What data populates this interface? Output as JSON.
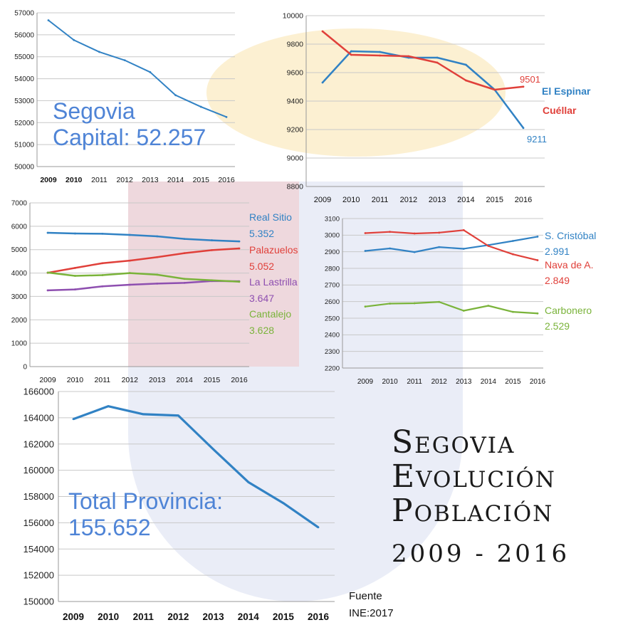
{
  "title": {
    "line1": "Segovia",
    "line2": "Evolución",
    "line3": "Población",
    "years": "2009 - 2016"
  },
  "source": {
    "label": "Fuente",
    "value": "INE:2017"
  },
  "colors": {
    "blue": "#3182c4",
    "red": "#e0403a",
    "green": "#7ab33a",
    "purple": "#8e4fb0",
    "label_blue": "#4f84d6",
    "grid": "#c8c8c8"
  },
  "labels": {
    "capital_line1": "Segovia",
    "capital_line2": "Capital: 52.257",
    "provincia_line1": "Total Provincia:",
    "provincia_line2": "155.652"
  },
  "chart_data": [
    {
      "id": "capital",
      "type": "line",
      "title": "Segovia Capital: 52.257",
      "x": [
        "2009",
        "2010",
        "2011",
        "2012",
        "2013",
        "2014",
        "2015",
        "2016"
      ],
      "ylim": [
        50000,
        57000
      ],
      "yticks": [
        50000,
        51000,
        52000,
        53000,
        54000,
        55000,
        56000,
        57000
      ],
      "series": [
        {
          "name": "Segovia Capital",
          "color": "#3182c4",
          "values": [
            56660,
            55760,
            55220,
            54840,
            54300,
            53250,
            52720,
            52257
          ]
        }
      ]
    },
    {
      "id": "espinar-cuellar",
      "type": "line",
      "x": [
        "2009",
        "2010",
        "2011",
        "2012",
        "2013",
        "2014",
        "2015",
        "2016"
      ],
      "ylim": [
        8800,
        10000
      ],
      "yticks": [
        8800,
        9000,
        9200,
        9400,
        9600,
        9800,
        10000
      ],
      "series": [
        {
          "name": "El Espinar",
          "color": "#3182c4",
          "values": [
            9530,
            9750,
            9745,
            9705,
            9705,
            9655,
            9480,
            9211
          ],
          "end_label": "9211"
        },
        {
          "name": "Cuéllar",
          "color": "#e0403a",
          "values": [
            9890,
            9725,
            9720,
            9715,
            9670,
            9545,
            9480,
            9501
          ],
          "end_label": "9501"
        }
      ]
    },
    {
      "id": "municipios-medianos",
      "type": "line",
      "x": [
        "2009",
        "2010",
        "2011",
        "2012",
        "2013",
        "2014",
        "2015",
        "2016"
      ],
      "ylim": [
        0,
        7000
      ],
      "yticks": [
        0,
        1000,
        2000,
        3000,
        4000,
        5000,
        6000,
        7000
      ],
      "series": [
        {
          "name": "Real Sitio",
          "color": "#3182c4",
          "values": [
            5720,
            5690,
            5680,
            5630,
            5570,
            5460,
            5400,
            5352
          ],
          "end_label": "5.352"
        },
        {
          "name": "Palazuelos",
          "color": "#e0403a",
          "values": [
            4010,
            4220,
            4420,
            4530,
            4680,
            4850,
            4980,
            5052
          ],
          "end_label": "5.052"
        },
        {
          "name": "La Lastrilla",
          "color": "#8e4fb0",
          "values": [
            3260,
            3300,
            3430,
            3500,
            3550,
            3580,
            3660,
            3647
          ],
          "end_label": "3.647"
        },
        {
          "name": "Cantalejo",
          "color": "#7ab33a",
          "values": [
            4020,
            3880,
            3910,
            4000,
            3930,
            3750,
            3690,
            3628
          ],
          "end_label": "3.628"
        }
      ]
    },
    {
      "id": "municipios-pequenos",
      "type": "line",
      "x": [
        "2009",
        "2010",
        "2011",
        "2012",
        "2013",
        "2014",
        "2015",
        "2016"
      ],
      "ylim": [
        2200,
        3100
      ],
      "yticks": [
        2200,
        2300,
        2400,
        2500,
        2600,
        2700,
        2800,
        2900,
        3000,
        3100
      ],
      "series": [
        {
          "name": "S. Cristóbal",
          "color": "#3182c4",
          "values": [
            2905,
            2920,
            2898,
            2928,
            2918,
            2940,
            2965,
            2991
          ],
          "end_label": "2.991"
        },
        {
          "name": "Nava de A.",
          "color": "#e0403a",
          "values": [
            3012,
            3020,
            3010,
            3015,
            3030,
            2935,
            2885,
            2849
          ],
          "end_label": "2.849"
        },
        {
          "name": "Carbonero",
          "color": "#7ab33a",
          "values": [
            2570,
            2588,
            2590,
            2598,
            2545,
            2575,
            2538,
            2529
          ],
          "end_label": "2.529"
        }
      ]
    },
    {
      "id": "provincia",
      "type": "line",
      "title": "Total Provincia: 155.652",
      "x": [
        "2009",
        "2010",
        "2011",
        "2012",
        "2013",
        "2014",
        "2015",
        "2016"
      ],
      "ylim": [
        150000,
        166000
      ],
      "yticks": [
        150000,
        152000,
        154000,
        156000,
        158000,
        160000,
        162000,
        164000,
        166000
      ],
      "series": [
        {
          "name": "Total Provincia",
          "color": "#3182c4",
          "values": [
            163900,
            164880,
            164270,
            164170,
            161600,
            159100,
            157500,
            155652
          ]
        }
      ]
    }
  ]
}
